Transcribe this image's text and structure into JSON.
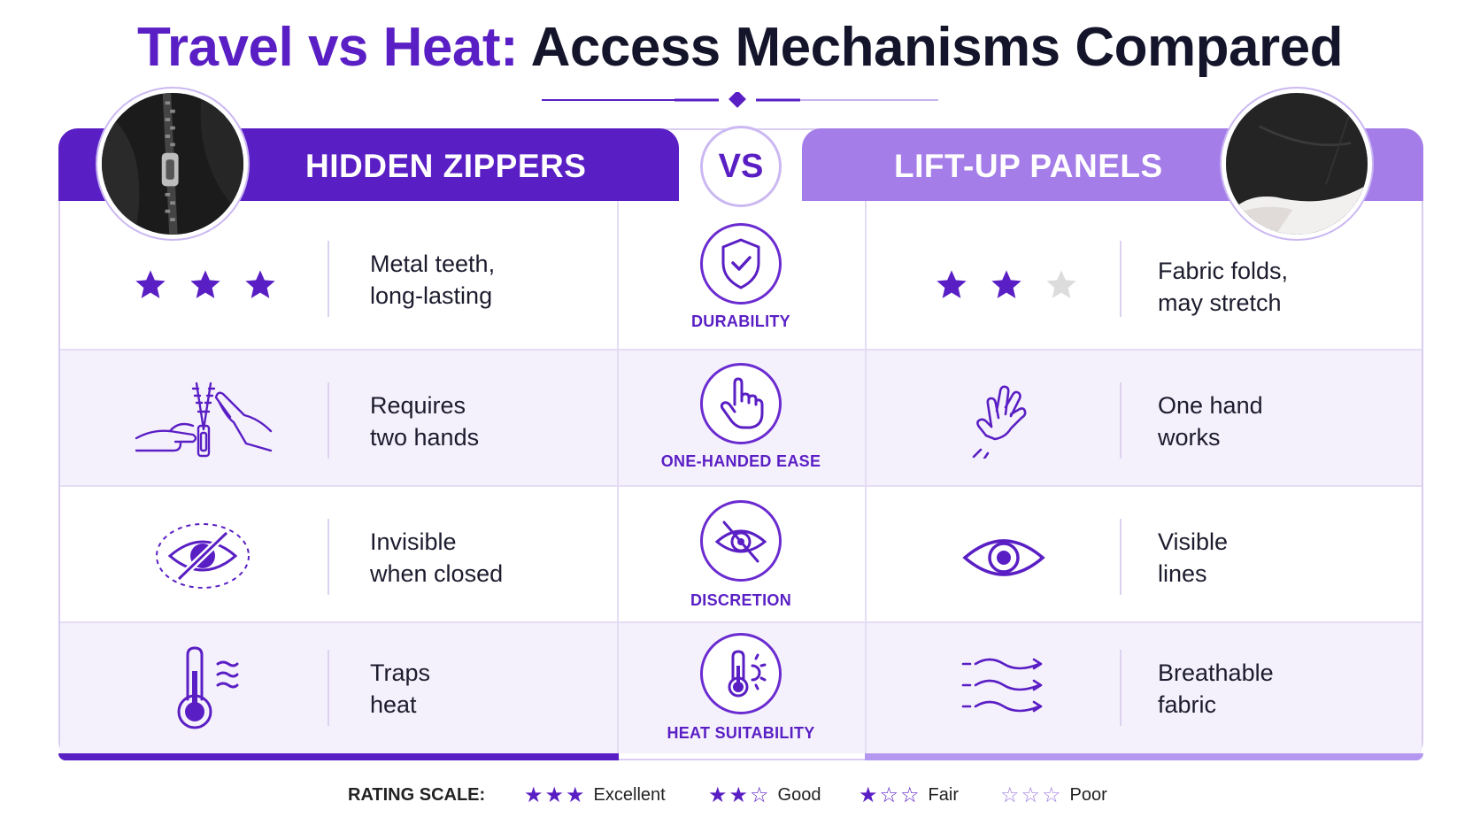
{
  "title": {
    "accent": "Travel vs Heat:",
    "rest": "Access Mechanisms Compared"
  },
  "columns": {
    "left": "HIDDEN ZIPPERS",
    "vs": "VS",
    "right": "LIFT-UP PANELS"
  },
  "rows": [
    {
      "criterion": "DURABILITY",
      "criterion_icon": "shield-check-icon",
      "left_icon": "three-stars",
      "left_rating": 3,
      "left_text": [
        "Metal teeth,",
        "long-lasting"
      ],
      "right_icon": "two-stars",
      "right_rating": 2,
      "right_text": [
        "Fabric folds,",
        "may stretch"
      ]
    },
    {
      "criterion": "ONE-HANDED EASE",
      "criterion_icon": "pointing-hand-icon",
      "left_icon": "two-hands-zipper-icon",
      "left_text": [
        "Requires",
        "two hands"
      ],
      "right_icon": "one-hand-icon",
      "right_text": [
        "One hand",
        "works"
      ]
    },
    {
      "criterion": "DISCRETION",
      "criterion_icon": "eye-slash-icon",
      "left_icon": "hidden-eye-icon",
      "left_text": [
        "Invisible",
        "when closed"
      ],
      "right_icon": "eye-icon",
      "right_text": [
        "Visible",
        "lines"
      ]
    },
    {
      "criterion": "HEAT SUITABILITY",
      "criterion_icon": "thermometer-sun-icon",
      "left_icon": "thermometer-heat-icon",
      "left_text": [
        "Traps",
        "heat"
      ],
      "right_icon": "airflow-icon",
      "right_text": [
        "Breathable",
        "fabric"
      ]
    }
  ],
  "legend": {
    "label": "RATING SCALE:",
    "items": [
      {
        "stars": "★★★",
        "label": "Excellent",
        "filled": 3
      },
      {
        "stars": "★★☆",
        "label": "Good",
        "filled": 2
      },
      {
        "stars": "★☆☆",
        "label": "Fair",
        "filled": 1
      },
      {
        "stars": "☆☆☆",
        "label": "Poor",
        "filled": 0
      }
    ]
  },
  "colors": {
    "primary": "#5a1fc4",
    "secondary": "#a47de9",
    "empty_star": "#dcdcdc",
    "row_alt": "#f5f1fc"
  }
}
